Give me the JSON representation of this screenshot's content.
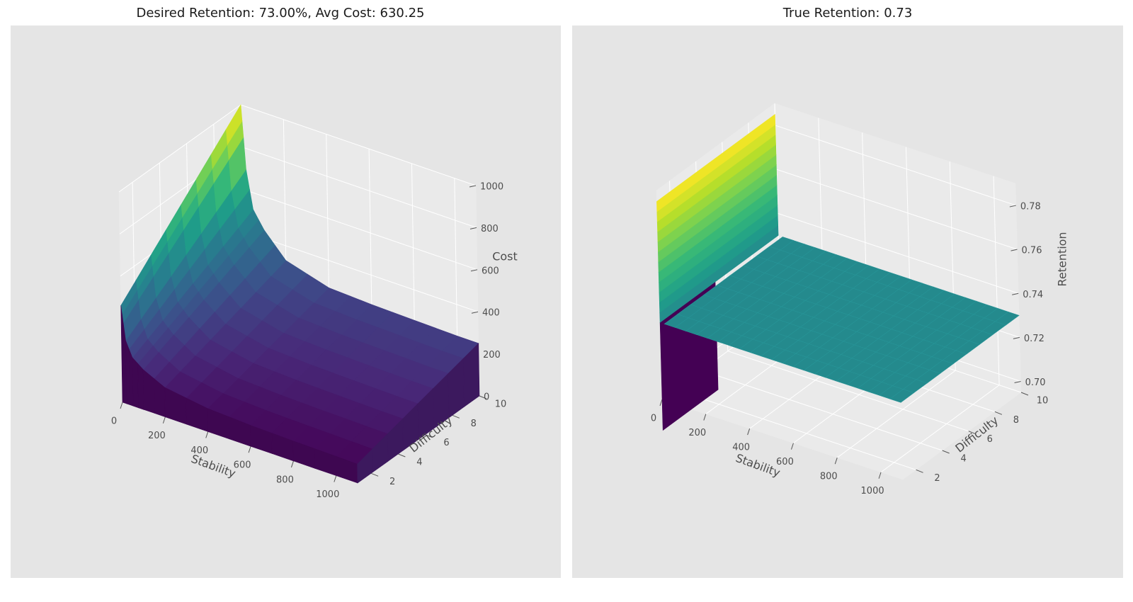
{
  "chart_data": [
    {
      "type": "surface",
      "title": "Desired Retention: 73.00%, Avg Cost: 630.25",
      "xlabel": "Stability",
      "ylabel": "Difficulty",
      "zlabel": "Cost",
      "x_ticks": [
        0,
        200,
        400,
        600,
        800,
        1000
      ],
      "y_ticks": [
        2,
        4,
        6,
        8,
        10
      ],
      "z_ticks": [
        0,
        200,
        400,
        600,
        800,
        1000
      ],
      "xlim": [
        0,
        1100
      ],
      "ylim": [
        1,
        10
      ],
      "zlim": [
        0,
        1000
      ],
      "colormap": "viridis",
      "grid": true,
      "surface_samples": {
        "stability": [
          0,
          20,
          50,
          100,
          200,
          400,
          600,
          800,
          1000,
          1100
        ],
        "difficulty_1_cost": [
          460,
          300,
          230,
          190,
          140,
          110,
          100,
          95,
          92,
          90
        ],
        "difficulty_10_cost": [
          1000,
          700,
          520,
          440,
          330,
          270,
          260,
          255,
          250,
          250
        ]
      }
    },
    {
      "type": "surface",
      "title": "True Retention: 0.73",
      "xlabel": "Stability",
      "ylabel": "Difficulty",
      "zlabel": "Retention",
      "x_ticks": [
        0,
        200,
        400,
        600,
        800,
        1000
      ],
      "y_ticks": [
        2,
        4,
        6,
        8,
        10
      ],
      "z_ticks": [
        "0.70",
        "0.72",
        "0.74",
        "0.76",
        "0.78"
      ],
      "xlim": [
        0,
        1100
      ],
      "ylim": [
        1,
        10
      ],
      "zlim": [
        0.695,
        0.79
      ],
      "colormap": "viridis",
      "grid": true,
      "surface_samples": {
        "stability": [
          0,
          20,
          1100
        ],
        "retention": [
          0.785,
          0.73,
          0.73
        ],
        "min_retention": 0.68
      }
    }
  ],
  "colors": {
    "panel_bg": "#e5e5e5",
    "pane_fill": "#eaeaea",
    "grid": "#ffffff",
    "text": "#4d4d4d"
  }
}
